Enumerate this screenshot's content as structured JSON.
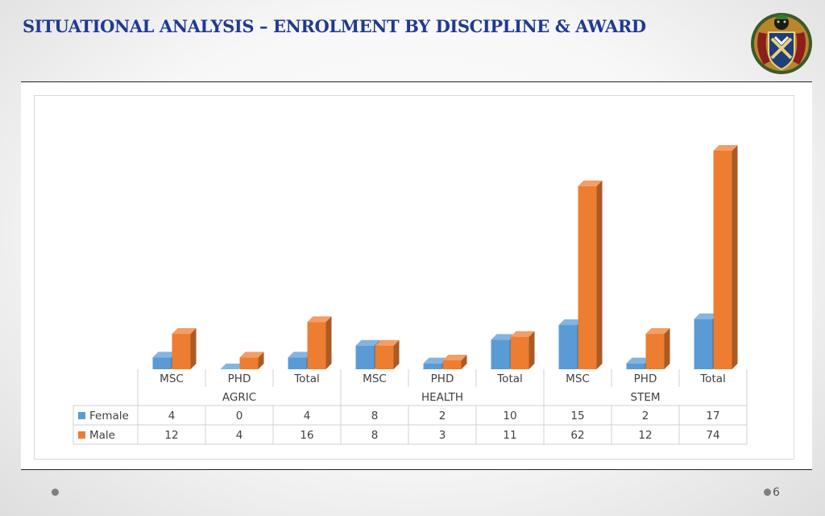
{
  "slide": {
    "title": "SITUATIONAL ANALYSIS – ENROLMENT BY DISCIPLINE & AWARD",
    "page_number": "6",
    "logo": "university-crest"
  },
  "chart_data": {
    "type": "bar",
    "style": "3d-clustered-column-with-data-table",
    "title": "",
    "groups": [
      {
        "label": "AGRIC",
        "categories": [
          "MSC",
          "PHD",
          "Total"
        ]
      },
      {
        "label": "HEALTH",
        "categories": [
          "MSC",
          "PHD",
          "Total"
        ]
      },
      {
        "label": "STEM",
        "categories": [
          "MSC",
          "PHD",
          "Total"
        ]
      }
    ],
    "categories": [
      "MSC",
      "PHD",
      "Total",
      "MSC",
      "PHD",
      "Total",
      "MSC",
      "PHD",
      "Total"
    ],
    "series": [
      {
        "name": "Female",
        "color": "#5b9bd5",
        "values": [
          4,
          0,
          4,
          8,
          2,
          10,
          15,
          2,
          17
        ]
      },
      {
        "name": "Male",
        "color": "#ed7d31",
        "values": [
          12,
          4,
          16,
          8,
          3,
          11,
          62,
          12,
          74
        ]
      }
    ],
    "ylim": [
      0,
      80
    ],
    "grid": false,
    "legend": "data-table"
  }
}
